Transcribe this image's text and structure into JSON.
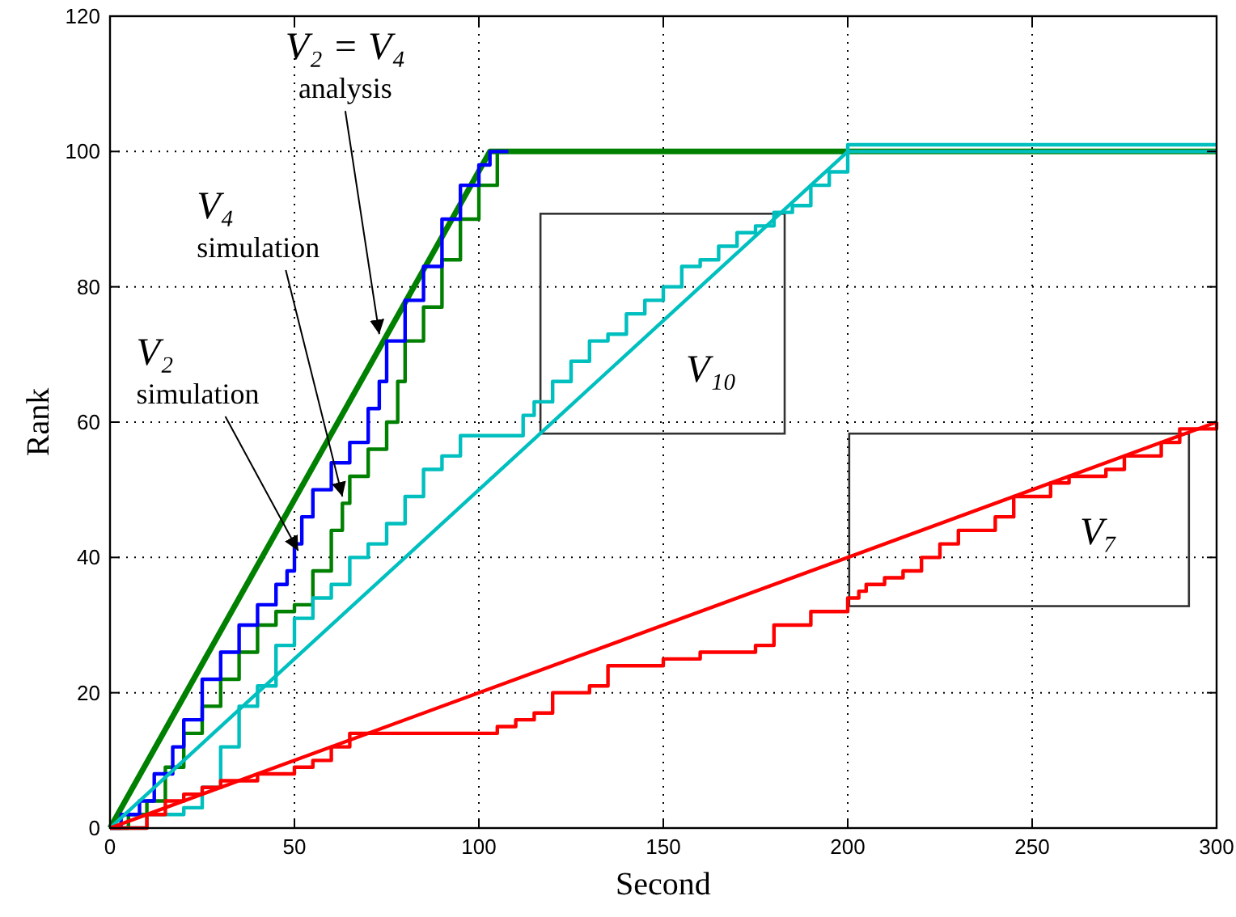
{
  "chart_data": {
    "type": "line",
    "xlabel": "Second",
    "ylabel": "Rank",
    "xlim": [
      0,
      300
    ],
    "ylim": [
      0,
      120
    ],
    "xticks": [
      0,
      50,
      100,
      150,
      200,
      250,
      300
    ],
    "yticks": [
      0,
      20,
      40,
      60,
      80,
      100,
      120
    ],
    "grid": true,
    "line_style": "solid",
    "marker": "none",
    "series": [
      {
        "color": "#008000",
        "x": [
          0,
          103,
          300
        ],
        "values": [
          0,
          100,
          100
        ]
      },
      {
        "type": "step",
        "color": "#008000",
        "x": [
          0,
          5,
          10,
          15,
          20,
          25,
          30,
          35,
          40,
          45,
          50,
          55,
          60,
          63,
          65,
          70,
          75,
          78,
          80,
          85,
          90,
          95,
          100,
          105,
          108
        ],
        "values": [
          0,
          2,
          4,
          9,
          14,
          18,
          22,
          26,
          30,
          32,
          33,
          38,
          44,
          48,
          52,
          56,
          60,
          66,
          72,
          77,
          84,
          90,
          95,
          100,
          100
        ]
      },
      {
        "type": "step",
        "color": "#0000ff",
        "x": [
          0,
          3,
          8,
          12,
          17,
          20,
          25,
          30,
          35,
          40,
          45,
          48,
          50,
          52,
          55,
          60,
          65,
          70,
          73,
          75,
          80,
          85,
          90,
          95,
          100,
          103,
          108
        ],
        "values": [
          0,
          2,
          4,
          8,
          12,
          16,
          22,
          26,
          30,
          33,
          36,
          38,
          42,
          46,
          50,
          54,
          57,
          62,
          66,
          72,
          78,
          83,
          90,
          95,
          98,
          100,
          100
        ]
      },
      {
        "color": "#00bfbf",
        "x": [
          0,
          200,
          300
        ],
        "values": [
          0,
          100,
          100
        ]
      },
      {
        "type": "step",
        "color": "#00bfbf",
        "x": [
          0,
          10,
          20,
          25,
          30,
          35,
          40,
          45,
          50,
          55,
          60,
          65,
          70,
          75,
          80,
          85,
          90,
          95,
          110,
          112,
          115,
          120,
          125,
          130,
          135,
          140,
          145,
          150,
          155,
          160,
          165,
          170,
          175,
          180,
          185,
          190,
          195,
          200,
          300
        ],
        "values": [
          0,
          2,
          3,
          6,
          12,
          18,
          21,
          27,
          31,
          34,
          36,
          40,
          42,
          45,
          49,
          53,
          55,
          58,
          58,
          61,
          63,
          66,
          69,
          72,
          73,
          76,
          78,
          80,
          83,
          84,
          86,
          88,
          89,
          91,
          92,
          95,
          97,
          101,
          101
        ]
      },
      {
        "color": "#ff0000",
        "x": [
          0,
          300
        ],
        "values": [
          0,
          60
        ]
      },
      {
        "type": "step",
        "color": "#ff0000",
        "x": [
          0,
          10,
          15,
          20,
          25,
          30,
          40,
          50,
          55,
          60,
          65,
          100,
          105,
          110,
          115,
          120,
          130,
          135,
          150,
          160,
          175,
          180,
          190,
          200,
          203,
          205,
          210,
          215,
          220,
          225,
          230,
          240,
          245,
          255,
          260,
          270,
          275,
          285,
          290,
          300
        ],
        "values": [
          0,
          2,
          4,
          5,
          6,
          7,
          8,
          9,
          10,
          12,
          14,
          14,
          15,
          16,
          17,
          20,
          21,
          24,
          25,
          26,
          27,
          30,
          32,
          34,
          35,
          36,
          37,
          38,
          40,
          42,
          44,
          46,
          49,
          51,
          52,
          53,
          55,
          57,
          59,
          60
        ]
      }
    ],
    "annotations": [
      {
        "text": "V₂ = V₄\nanalysis",
        "x": 73,
        "y": 73
      },
      {
        "text": "V₄\nsimulation",
        "x": 63,
        "y": 49
      },
      {
        "text": "V₂\nsimulation",
        "x": 51,
        "y": 41
      },
      "V₁₀",
      "V₇"
    ]
  }
}
